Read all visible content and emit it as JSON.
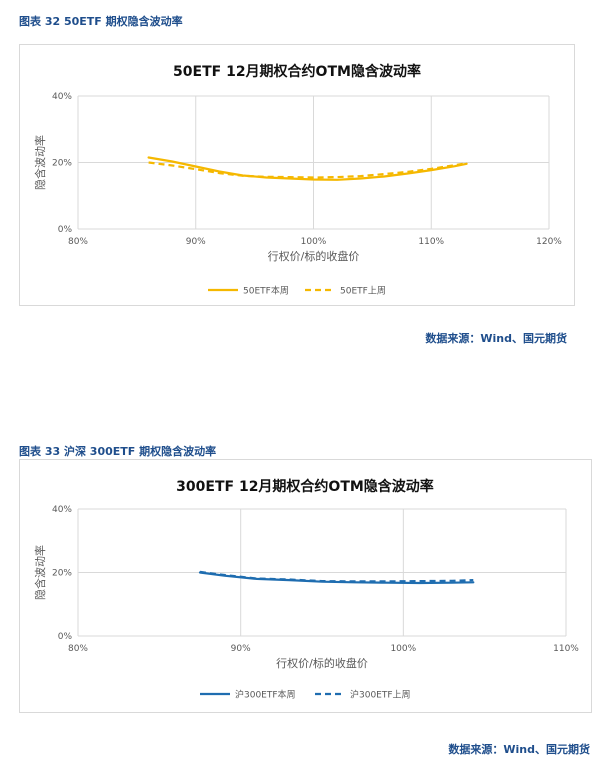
{
  "figures": [
    {
      "caption": "图表 32 50ETF 期权隐含波动率",
      "source": "数据来源：Wind、国元期货"
    },
    {
      "caption": "图表 33 沪深 300ETF 期权隐含波动率",
      "source": "数据来源：Wind、国元期货"
    }
  ],
  "chart_data": [
    {
      "type": "line",
      "title": "50ETF 12月期权合约OTM隐含波动率",
      "xlabel": "行权价/标的收盘价",
      "ylabel": "隐含波动率",
      "xlim": [
        0.8,
        1.2
      ],
      "ylim": [
        0,
        0.4
      ],
      "xticks": [
        "80%",
        "90%",
        "100%",
        "110%",
        "120%"
      ],
      "yticks": [
        "0%",
        "20%",
        "40%"
      ],
      "grid": true,
      "legend_position": "bottom",
      "series": [
        {
          "name": "50ETF本周",
          "color": "#f5b800",
          "dash": "solid",
          "x": [
            0.86,
            0.88,
            0.9,
            0.92,
            0.94,
            0.96,
            0.98,
            1.0,
            1.02,
            1.04,
            1.06,
            1.08,
            1.1,
            1.12,
            1.13
          ],
          "y": [
            0.215,
            0.203,
            0.188,
            0.173,
            0.161,
            0.155,
            0.152,
            0.149,
            0.148,
            0.152,
            0.158,
            0.167,
            0.177,
            0.189,
            0.196
          ]
        },
        {
          "name": "50ETF上周",
          "color": "#f5b800",
          "dash": "dashed",
          "x": [
            0.86,
            0.88,
            0.9,
            0.92,
            0.94,
            0.96,
            0.98,
            1.0,
            1.02,
            1.04,
            1.06,
            1.08,
            1.1,
            1.12,
            1.13
          ],
          "y": [
            0.2,
            0.191,
            0.18,
            0.168,
            0.16,
            0.157,
            0.156,
            0.155,
            0.156,
            0.159,
            0.165,
            0.172,
            0.181,
            0.192,
            0.198
          ]
        }
      ]
    },
    {
      "type": "line",
      "title": "300ETF 12月期权合约OTM隐含波动率",
      "xlabel": "行权价/标的收盘价",
      "ylabel": "隐含波动率",
      "xlim": [
        0.8,
        1.1
      ],
      "ylim": [
        0,
        0.4
      ],
      "xticks": [
        "80%",
        "90%",
        "100%",
        "110%"
      ],
      "yticks": [
        "0%",
        "20%",
        "40%"
      ],
      "grid": true,
      "legend_position": "bottom",
      "series": [
        {
          "name": "沪300ETF本周",
          "color": "#1f6db0",
          "dash": "solid",
          "x": [
            0.875,
            0.89,
            0.91,
            0.93,
            0.95,
            0.97,
            0.99,
            1.01,
            1.03,
            1.043
          ],
          "y": [
            0.2,
            0.19,
            0.18,
            0.176,
            0.171,
            0.169,
            0.168,
            0.167,
            0.168,
            0.169
          ]
        },
        {
          "name": "沪300ETF上周",
          "color": "#1f6db0",
          "dash": "dashed",
          "x": [
            0.875,
            0.89,
            0.91,
            0.93,
            0.95,
            0.97,
            0.99,
            1.01,
            1.03,
            1.043
          ],
          "y": [
            0.202,
            0.192,
            0.181,
            0.178,
            0.173,
            0.172,
            0.172,
            0.173,
            0.174,
            0.176
          ]
        }
      ]
    }
  ]
}
